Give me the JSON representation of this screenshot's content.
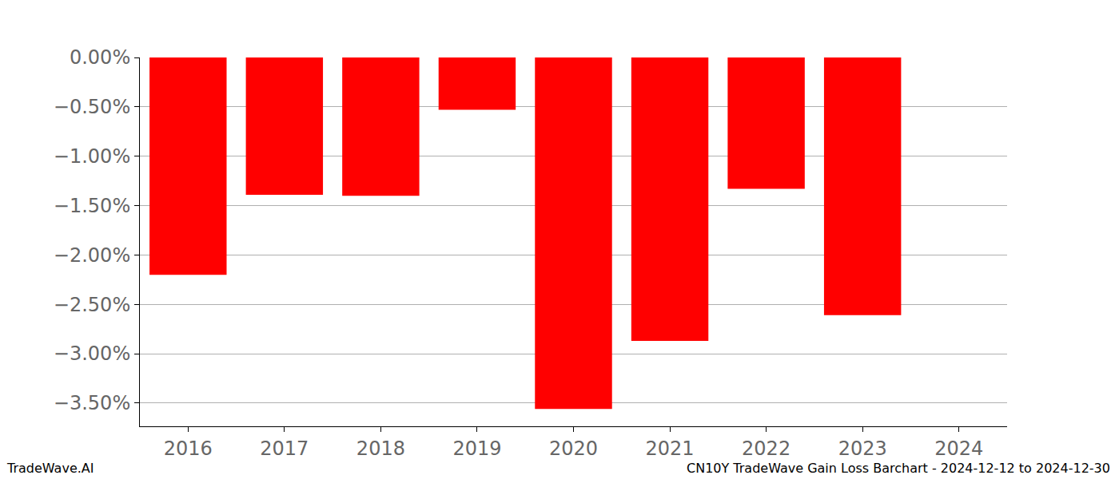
{
  "chart_data": {
    "type": "bar",
    "categories": [
      "2016",
      "2017",
      "2018",
      "2019",
      "2020",
      "2021",
      "2022",
      "2023",
      "2024"
    ],
    "values": [
      -2.2,
      -1.39,
      -1.4,
      -0.53,
      -3.56,
      -2.87,
      -1.33,
      -2.61,
      null
    ],
    "color": "#ff0000",
    "ylim": [
      -3.735,
      0
    ],
    "yticks": [
      {
        "value": 0,
        "label": "0.00%"
      },
      {
        "value": -0.5,
        "label": "−0.50%"
      },
      {
        "value": -1.0,
        "label": "−1.00%"
      },
      {
        "value": -1.5,
        "label": "−1.50%"
      },
      {
        "value": -2.0,
        "label": "−2.00%"
      },
      {
        "value": -2.5,
        "label": "−2.50%"
      },
      {
        "value": -3.0,
        "label": "−3.00%"
      },
      {
        "value": -3.5,
        "label": "−3.50%"
      }
    ],
    "grid": true,
    "annotations": [
      "TradeWave.AI",
      "CN10Y TradeWave Gain Loss Barchart - 2024-12-12 to 2024-12-30"
    ]
  }
}
